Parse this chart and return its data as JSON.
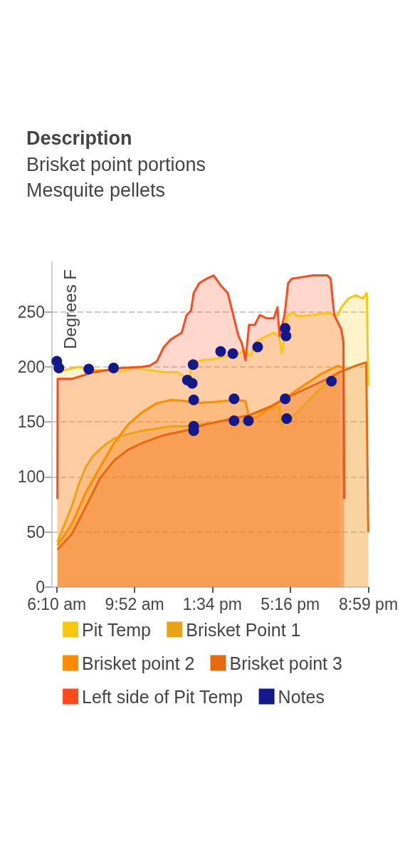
{
  "chart_data": {
    "type": "area",
    "title": "Description",
    "subtitle": "Brisket point portions\nMesquite pellets",
    "ylabel": "Degrees F",
    "xlim": [
      5.94,
      21.0
    ],
    "xticks": [
      {
        "value": 6.1667,
        "label": "6:10 am"
      },
      {
        "value": 9.8667,
        "label": "9:52 am"
      },
      {
        "value": 13.5667,
        "label": "1:34 pm"
      },
      {
        "value": 17.2667,
        "label": "5:16 pm"
      },
      {
        "value": 20.9833,
        "label": "8:59 pm"
      }
    ],
    "ylim": [
      0,
      295
    ],
    "yticks": [
      0,
      50,
      100,
      150,
      200,
      250
    ],
    "grid": "y",
    "legend": "bottom",
    "marker": "none",
    "line_style": "solid",
    "series": [
      {
        "name": "Pit Temp",
        "color": "#f9c80e",
        "x": [
          6.17,
          6.54,
          7.21,
          7.89,
          8.56,
          9.24,
          9.91,
          10.59,
          11.26,
          11.94,
          12.21,
          12.34,
          12.48,
          12.55,
          12.68,
          13.12,
          13.63,
          14.3,
          14.81,
          15.14,
          15.38,
          15.65,
          16.06,
          16.49,
          16.73,
          16.87,
          17.0,
          17.14,
          17.34,
          17.67,
          18.35,
          19.03,
          19.53,
          19.7,
          20.04,
          20.38,
          20.71,
          20.91,
          20.98
        ],
        "values": [
          199,
          197,
          200,
          197,
          197,
          196,
          199,
          197,
          195,
          195,
          191,
          186,
          186,
          202,
          204,
          206,
          207,
          210,
          212,
          215,
          210,
          223,
          227,
          231,
          228,
          212,
          228,
          247,
          249,
          246,
          247,
          249,
          247,
          254,
          262,
          265,
          262,
          267,
          183
        ]
      },
      {
        "name": "Brisket Point 1",
        "color": "#e8a317",
        "x": [
          6.2,
          6.54,
          6.88,
          7.21,
          7.55,
          7.89,
          8.39,
          8.9,
          9.58,
          10.25,
          10.93,
          11.6,
          12.28,
          12.68,
          13.63,
          14.64,
          15.31,
          15.99,
          16.76,
          16.83,
          17.67,
          18.69,
          19.63
        ],
        "values": [
          41,
          57,
          73,
          93,
          109,
          119,
          128,
          135,
          139,
          142,
          144,
          146,
          146,
          147,
          149,
          154,
          156,
          160,
          164,
          146,
          160,
          180,
          196
        ]
      },
      {
        "name": "Brisket point 2",
        "color": "#ff8c00",
        "x": [
          6.2,
          6.88,
          7.55,
          8.23,
          8.9,
          9.58,
          10.25,
          10.93,
          11.6,
          12.28,
          12.68,
          13.63,
          14.64,
          15.14,
          15.31,
          15.65,
          16.66,
          17.67,
          18.69,
          19.53,
          19.8,
          19.83
        ],
        "values": [
          38,
          57,
          86,
          109,
          131,
          148,
          159,
          167,
          170,
          169,
          167,
          168,
          170,
          169,
          154,
          154,
          167,
          180,
          193,
          201,
          199,
          80
        ]
      },
      {
        "name": "Brisket point 3",
        "color": "#e66a11",
        "x": [
          6.2,
          6.88,
          7.55,
          8.23,
          8.9,
          9.58,
          10.25,
          11.26,
          12.28,
          13.29,
          14.3,
          15.31,
          16.33,
          17.0,
          18.01,
          19.03,
          19.7,
          20.38,
          20.88,
          20.98
        ],
        "values": [
          34,
          48,
          73,
          99,
          115,
          125,
          131,
          138,
          142,
          148,
          152,
          156,
          164,
          171,
          180,
          189,
          196,
          201,
          204,
          50
        ]
      },
      {
        "name": "Left side of Pit Temp",
        "color": "#ff4a1c",
        "x": [
          6.2,
          6.21,
          6.88,
          7.89,
          9.24,
          10.25,
          10.59,
          10.93,
          11.26,
          11.6,
          12.11,
          12.34,
          12.55,
          12.68,
          12.95,
          13.29,
          13.63,
          13.96,
          14.3,
          14.47,
          14.81,
          14.98,
          15.14,
          15.31,
          15.58,
          15.82,
          16.16,
          16.49,
          16.66,
          16.76,
          17.0,
          17.17,
          17.34,
          17.67,
          18.35,
          19.03,
          19.19,
          19.36,
          19.7,
          19.8,
          19.83
        ],
        "values": [
          80,
          189,
          189,
          195,
          199,
          200,
          201,
          205,
          218,
          225,
          231,
          247,
          251,
          267,
          276,
          280,
          283,
          274,
          267,
          254,
          228,
          221,
          206,
          238,
          238,
          247,
          244,
          244,
          254,
          228,
          247,
          276,
          280,
          281,
          283,
          283,
          280,
          247,
          234,
          222,
          80
        ]
      },
      {
        "name": "Notes",
        "type": "scatter",
        "marker": "circle",
        "color": "#13198a",
        "x": [
          6.17,
          6.27,
          7.69,
          8.87,
          12.38,
          12.61,
          12.65,
          12.68,
          12.68,
          12.68,
          13.96,
          14.54,
          14.6,
          14.6,
          15.28,
          15.72,
          17.03,
          17.07,
          17.03,
          17.1,
          19.23
        ],
        "values": [
          205,
          199,
          198,
          199,
          188,
          185,
          202,
          170,
          146,
          142,
          214,
          212,
          171,
          151,
          151,
          218,
          235,
          228,
          171,
          153,
          187
        ]
      }
    ]
  }
}
